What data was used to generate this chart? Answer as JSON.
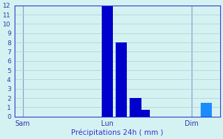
{
  "title": "",
  "xlabel": "Précipitations 24h ( mm )",
  "ylabel": "",
  "background_color": "#d4f2f2",
  "bar_color": "#0000cc",
  "bar_color2": "#1a8cff",
  "grid_color": "#b0cccc",
  "axis_line_color": "#3333cc",
  "tick_label_color": "#3333aa",
  "xlabel_color": "#3333cc",
  "ylim": [
    0,
    12
  ],
  "yticks": [
    0,
    1,
    2,
    3,
    4,
    5,
    6,
    7,
    8,
    9,
    10,
    11,
    12
  ],
  "total_days": 7,
  "bars": [
    {
      "day": 3.0,
      "height": 12.0,
      "color": "#0000cc"
    },
    {
      "day": 3.5,
      "height": 8.0,
      "color": "#0000cc"
    },
    {
      "day": 4.0,
      "height": 2.0,
      "color": "#0000cc"
    },
    {
      "day": 4.3,
      "height": 0.7,
      "color": "#0000cc"
    },
    {
      "day": 6.5,
      "height": 1.5,
      "color": "#1a8cff"
    }
  ],
  "bar_width": 0.4,
  "xtick_days": [
    0,
    3,
    6
  ],
  "xtick_labels": [
    "Sam",
    "Lun",
    "Dim"
  ],
  "vline_days": [
    0,
    3,
    6
  ]
}
